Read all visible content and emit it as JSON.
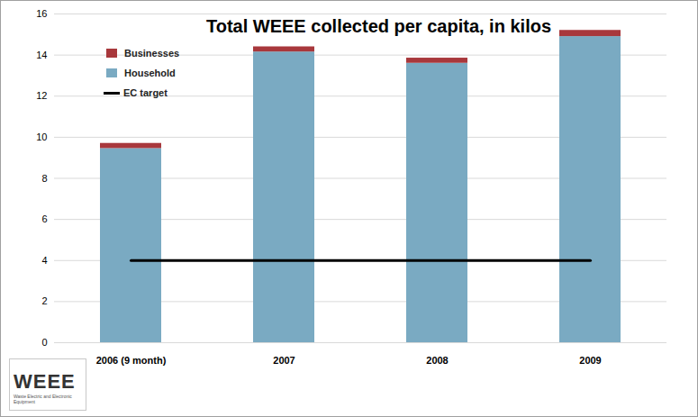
{
  "chart_data": {
    "type": "bar",
    "title": "Total WEEE collected per capita, in kilos",
    "categories": [
      "2006 (9 month)",
      "2007",
      "2008",
      "2009"
    ],
    "series": [
      {
        "name": "Household",
        "color": "#7aaac2",
        "values": [
          9.45,
          14.15,
          13.6,
          14.9
        ]
      },
      {
        "name": "Businesses",
        "color": "#a8383c",
        "values": [
          0.25,
          0.25,
          0.25,
          0.3
        ]
      },
      {
        "name": "EC target",
        "type": "line",
        "color": "#000000",
        "values": [
          4,
          4,
          4,
          4
        ]
      }
    ],
    "stacked": true,
    "ylim": [
      0,
      16
    ],
    "yticks": [
      0,
      2,
      4,
      6,
      8,
      10,
      12,
      14,
      16
    ],
    "grid": true,
    "legend": "top-left",
    "logo": {
      "text": "WEEE",
      "subtext": "Waste Electric and Electronic Equipment"
    }
  }
}
